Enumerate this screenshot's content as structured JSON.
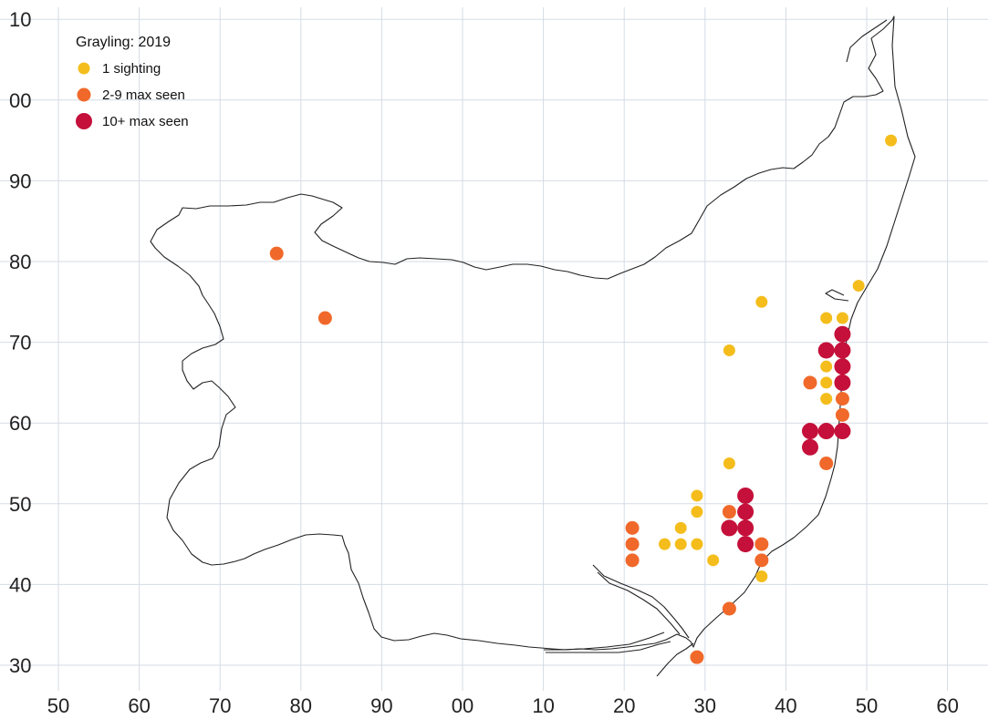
{
  "chart_data": {
    "type": "scatter",
    "title": "Grayling: 2019",
    "x_ticks": [
      "50",
      "60",
      "70",
      "80",
      "90",
      "00",
      "10",
      "20",
      "30",
      "40",
      "50",
      "60"
    ],
    "y_ticks": [
      "30",
      "40",
      "50",
      "60",
      "70",
      "80",
      "90",
      "00",
      "10"
    ],
    "legend": [
      {
        "key": "one",
        "label": "1 sighting"
      },
      {
        "key": "few",
        "label": "2-9 max seen"
      },
      {
        "key": "many",
        "label": "10+ max seen"
      }
    ],
    "categories": {
      "one": {
        "color": "#f4bd1c",
        "size": 1
      },
      "few": {
        "color": "#f0692a",
        "size": 2
      },
      "many": {
        "color": "#c4103a",
        "size": 3
      }
    },
    "points": [
      {
        "x": 153,
        "y": 95,
        "c": "one"
      },
      {
        "x": 149,
        "y": 77,
        "c": "one"
      },
      {
        "x": 137,
        "y": 75,
        "c": "one"
      },
      {
        "x": 145,
        "y": 73,
        "c": "one"
      },
      {
        "x": 147,
        "y": 73,
        "c": "one"
      },
      {
        "x": 133,
        "y": 69,
        "c": "one"
      },
      {
        "x": 145,
        "y": 67,
        "c": "one"
      },
      {
        "x": 145,
        "y": 65,
        "c": "one"
      },
      {
        "x": 145,
        "y": 63,
        "c": "one"
      },
      {
        "x": 133,
        "y": 55,
        "c": "one"
      },
      {
        "x": 129,
        "y": 51,
        "c": "one"
      },
      {
        "x": 129,
        "y": 49,
        "c": "one"
      },
      {
        "x": 127,
        "y": 47,
        "c": "one"
      },
      {
        "x": 125,
        "y": 45,
        "c": "one"
      },
      {
        "x": 127,
        "y": 45,
        "c": "one"
      },
      {
        "x": 129,
        "y": 45,
        "c": "one"
      },
      {
        "x": 131,
        "y": 43,
        "c": "one"
      },
      {
        "x": 137,
        "y": 41,
        "c": "one"
      },
      {
        "x": 77,
        "y": 81,
        "c": "few"
      },
      {
        "x": 83,
        "y": 73,
        "c": "few"
      },
      {
        "x": 143,
        "y": 65,
        "c": "few"
      },
      {
        "x": 147,
        "y": 63,
        "c": "few"
      },
      {
        "x": 147,
        "y": 61,
        "c": "few"
      },
      {
        "x": 145,
        "y": 55,
        "c": "few"
      },
      {
        "x": 133,
        "y": 49,
        "c": "few"
      },
      {
        "x": 121,
        "y": 47,
        "c": "few"
      },
      {
        "x": 121,
        "y": 45,
        "c": "few"
      },
      {
        "x": 121,
        "y": 43,
        "c": "few"
      },
      {
        "x": 137,
        "y": 45,
        "c": "few"
      },
      {
        "x": 137,
        "y": 43,
        "c": "few"
      },
      {
        "x": 133,
        "y": 37,
        "c": "few"
      },
      {
        "x": 129,
        "y": 31,
        "c": "few"
      },
      {
        "x": 147,
        "y": 71,
        "c": "many"
      },
      {
        "x": 145,
        "y": 69,
        "c": "many"
      },
      {
        "x": 147,
        "y": 69,
        "c": "many"
      },
      {
        "x": 147,
        "y": 67,
        "c": "many"
      },
      {
        "x": 147,
        "y": 65,
        "c": "many"
      },
      {
        "x": 143,
        "y": 59,
        "c": "many"
      },
      {
        "x": 145,
        "y": 59,
        "c": "many"
      },
      {
        "x": 147,
        "y": 59,
        "c": "many"
      },
      {
        "x": 143,
        "y": 57,
        "c": "many"
      },
      {
        "x": 135,
        "y": 51,
        "c": "many"
      },
      {
        "x": 135,
        "y": 49,
        "c": "many"
      },
      {
        "x": 133,
        "y": 47,
        "c": "many"
      },
      {
        "x": 135,
        "y": 47,
        "c": "many"
      },
      {
        "x": 135,
        "y": 45,
        "c": "many"
      }
    ],
    "xlim": [
      50,
      165
    ],
    "ylim": [
      28,
      110
    ],
    "grid": true,
    "legend_position": "top-left"
  }
}
